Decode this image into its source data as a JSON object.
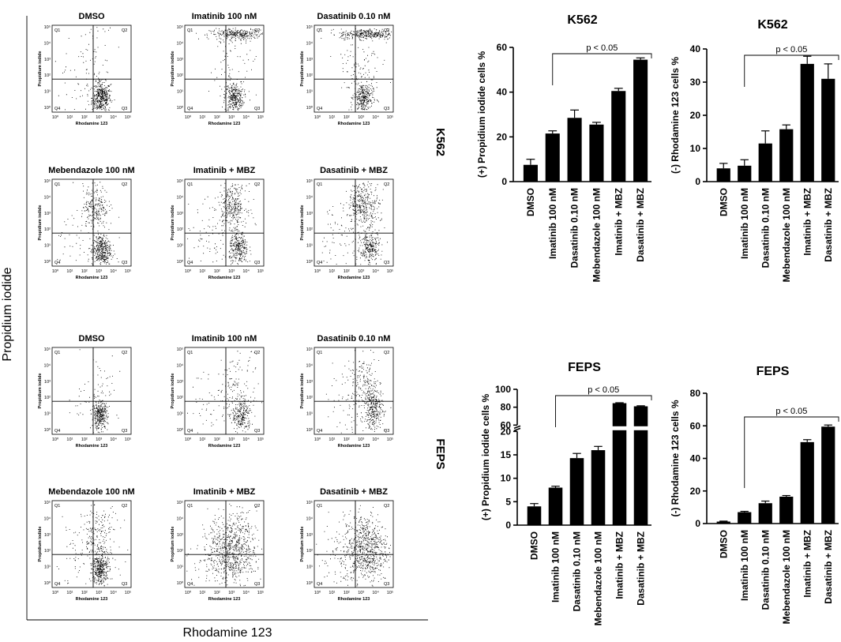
{
  "figure": {
    "y_axis_label": "Propidium iodide",
    "x_axis_label": "Rhodamine 123"
  },
  "flow": {
    "row_labels": [
      "K562",
      "FEPS"
    ],
    "plot_xlabel": "Rhodamine 123",
    "plot_ylabel": "Propidium iodide",
    "quadrants": [
      "Q1",
      "Q2",
      "Q3",
      "Q4"
    ],
    "k562_titles": [
      "DMSO",
      "Imatinib 100 nM",
      "Dasatinib 0.10 nM",
      "Mebendazole 100 nM",
      "Imatinib + MBZ",
      "Dasatinib + MBZ"
    ],
    "feps_titles": [
      "DMSO",
      "Imatinib 100 nM",
      "Dasatinib 0.10 nM",
      "Mebendazole 100 nM",
      "Imatinib + MBZ",
      "Dasatinib + MBZ"
    ],
    "tick_labels": [
      "10⁰",
      "10¹",
      "10²",
      "10³",
      "10⁴",
      "10⁵"
    ]
  },
  "chart_data": [
    {
      "type": "bar",
      "title": "K562",
      "ylabel": "(+) Propidium iodide cells  %",
      "categories": [
        "DMSO",
        "Imatinib 100 nM",
        "Dasatinib 0.10 nM",
        "Mebendazole 100 nM",
        "Imatinib + MBZ",
        "Dasatinib + MBZ"
      ],
      "values": [
        7.5,
        21.5,
        28.5,
        25.5,
        40.5,
        54.5
      ],
      "errors": [
        2.5,
        1.2,
        3.5,
        1.0,
        1.2,
        0.8
      ],
      "ylim": [
        0,
        60
      ],
      "yticks": [
        0,
        20,
        40,
        60
      ],
      "annotation": "p < 0.05"
    },
    {
      "type": "bar",
      "title": "K562",
      "ylabel": "(-) Rhodamine 123 cells  %",
      "categories": [
        "DMSO",
        "Imatinib 100 nM",
        "Dasatinib 0.10 nM",
        "Mebendazole 100 nM",
        "Imatinib + MBZ",
        "Dasatinib + MBZ"
      ],
      "values": [
        4.0,
        4.8,
        11.5,
        15.8,
        35.5,
        31.0
      ],
      "errors": [
        1.5,
        1.8,
        3.8,
        1.3,
        2.3,
        4.5
      ],
      "ylim": [
        0,
        40
      ],
      "yticks": [
        0,
        10,
        20,
        30,
        40
      ],
      "annotation": "p < 0.05"
    },
    {
      "type": "bar",
      "title": "FEPS",
      "ylabel": "(+) Propidium iodide cells  %",
      "categories": [
        "DMSO",
        "Imatinib 100 nM",
        "Dasatinib 0.10 nM",
        "Mebendazole 100 nM",
        "Imatinib + MBZ",
        "Dasatinib + MBZ"
      ],
      "values": [
        4.0,
        8.0,
        14.3,
        16.0,
        84.5,
        81.0
      ],
      "errors": [
        0.6,
        0.3,
        1.0,
        0.8,
        0.5,
        0.6
      ],
      "ylim": [
        0,
        100
      ],
      "axis_break": [
        20,
        60
      ],
      "yticks": [
        0,
        5,
        10,
        15,
        20,
        60,
        80,
        100
      ],
      "annotation": "p < 0.05"
    },
    {
      "type": "bar",
      "title": "FEPS",
      "ylabel": "(-) Rhodamine 123 cells  %",
      "categories": [
        "DMSO",
        "Imatinib 100 nM",
        "Dasatinib 0.10 nM",
        "Mebendazole 100 nM",
        "Imatinib + MBZ",
        "Dasatinib + MBZ"
      ],
      "values": [
        1.2,
        7.0,
        12.5,
        16.5,
        50.0,
        59.5
      ],
      "errors": [
        0.3,
        0.5,
        1.3,
        0.7,
        1.5,
        1.0
      ],
      "ylim": [
        0,
        80
      ],
      "yticks": [
        0,
        20,
        40,
        60,
        80
      ],
      "annotation": "p < 0.05"
    }
  ]
}
